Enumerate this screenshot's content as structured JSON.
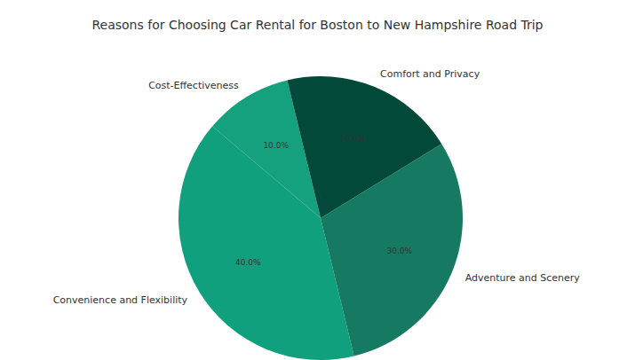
{
  "chart_data": {
    "type": "pie",
    "title": "Reasons for Choosing Car Rental for Boston to New Hampshire Road Trip",
    "categories": [
      "Cost-Effectiveness",
      "Convenience and Flexibility",
      "Adventure and Scenery",
      "Comfort and Privacy"
    ],
    "values": [
      10,
      40,
      30,
      20
    ],
    "value_labels": [
      "10.0%",
      "40.0%",
      "30.0%",
      "20.0%"
    ],
    "data_labels": true,
    "colors": [
      "#15a17e",
      "#11a07d",
      "#167a62",
      "#03493a"
    ]
  }
}
